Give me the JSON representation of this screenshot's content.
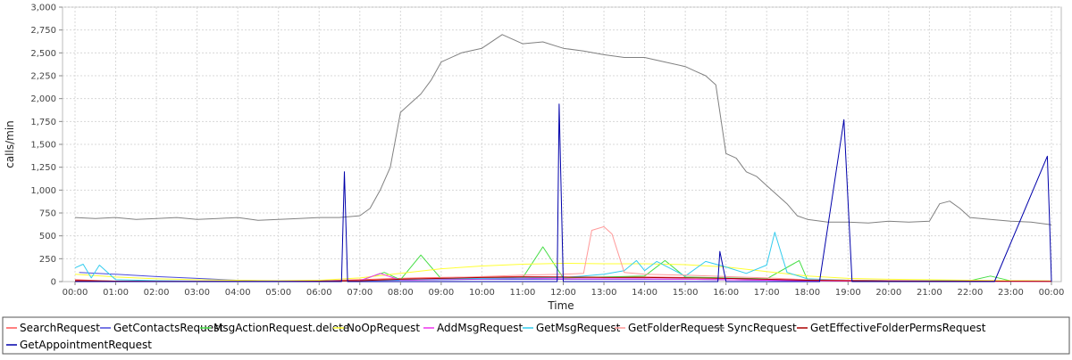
{
  "chart_data": {
    "type": "line",
    "xlabel": "Time",
    "ylabel": "calls/min",
    "ylim": [
      0,
      3000
    ],
    "yticks": [
      0,
      250,
      500,
      750,
      1000,
      1250,
      1500,
      1750,
      2000,
      2250,
      2500,
      2750,
      3000
    ],
    "ytick_labels": [
      "0",
      "250",
      "500",
      "750",
      "1,000",
      "1,250",
      "1,500",
      "1,750",
      "2,000",
      "2,250",
      "2,500",
      "2,750",
      "3,000"
    ],
    "x_range_hours": [
      0,
      24
    ],
    "xtick_labels": [
      "00:00",
      "01:00",
      "02:00",
      "03:00",
      "04:00",
      "05:00",
      "06:00",
      "07:00",
      "08:00",
      "09:00",
      "10:00",
      "11:00",
      "12:00",
      "13:00",
      "14:00",
      "15:00",
      "16:00",
      "17:00",
      "18:00",
      "19:00",
      "20:00",
      "21:00",
      "22:00",
      "23:00",
      "00:00"
    ],
    "grid": true,
    "legend": "bottom",
    "series": [
      {
        "name": "SearchRequest",
        "color": "#ff5555",
        "x": [
          0,
          1,
          2,
          3,
          4,
          5,
          6,
          7,
          8,
          9,
          10,
          11,
          12,
          13,
          14,
          15,
          16,
          17,
          18,
          19,
          20,
          21,
          22,
          23,
          24
        ],
        "values": [
          20,
          5,
          3,
          2,
          2,
          3,
          8,
          20,
          35,
          45,
          50,
          55,
          50,
          50,
          50,
          45,
          35,
          25,
          15,
          10,
          8,
          6,
          5,
          4,
          3
        ]
      },
      {
        "name": "GetContactsRequest",
        "color": "#4b4bdc",
        "x": [
          0.1,
          1,
          2,
          3,
          4,
          5,
          6,
          7,
          8,
          9,
          10,
          11,
          12,
          13,
          14,
          15,
          16,
          17,
          18,
          19,
          20,
          21,
          22,
          23,
          24
        ],
        "values": [
          100,
          80,
          55,
          35,
          15,
          5,
          5,
          10,
          15,
          20,
          25,
          25,
          25,
          25,
          25,
          25,
          20,
          15,
          10,
          5,
          5,
          5,
          5,
          5,
          5
        ]
      },
      {
        "name": "MsgActionRequest.delete",
        "color": "#44dd44",
        "x": [
          0,
          1,
          2,
          3,
          4,
          5,
          6,
          7,
          7.6,
          8,
          8.5,
          9,
          10,
          11,
          11.5,
          12,
          13,
          14,
          14.5,
          15,
          16,
          17,
          17.8,
          18,
          19,
          20,
          21,
          22,
          22.5,
          23,
          24
        ],
        "values": [
          10,
          5,
          3,
          2,
          2,
          3,
          5,
          10,
          100,
          20,
          290,
          30,
          35,
          40,
          380,
          40,
          50,
          60,
          230,
          50,
          40,
          30,
          230,
          20,
          15,
          10,
          10,
          10,
          60,
          8,
          5
        ]
      },
      {
        "name": "NoOpRequest",
        "color": "#ffff33",
        "x": [
          0,
          1,
          2,
          3,
          4,
          5,
          6,
          7,
          8,
          9,
          10,
          11,
          12,
          13,
          14,
          15,
          16,
          17,
          18,
          19,
          20,
          21,
          22,
          23,
          24
        ],
        "values": [
          80,
          50,
          30,
          20,
          15,
          10,
          15,
          40,
          90,
          140,
          170,
          190,
          200,
          195,
          195,
          185,
          160,
          110,
          60,
          35,
          25,
          20,
          15,
          10,
          8
        ]
      },
      {
        "name": "AddMsgRequest",
        "color": "#ee33ee",
        "x": [
          0,
          1,
          2,
          3,
          4,
          5,
          6,
          7,
          7.5,
          8,
          9,
          10,
          11,
          12,
          13,
          14,
          15,
          16,
          17,
          18,
          19,
          20,
          21,
          22,
          23,
          24
        ],
        "values": [
          5,
          3,
          2,
          2,
          2,
          2,
          5,
          10,
          90,
          15,
          25,
          30,
          35,
          30,
          30,
          30,
          25,
          20,
          15,
          10,
          5,
          5,
          5,
          5,
          3,
          3
        ]
      },
      {
        "name": "GetMsgRequest",
        "color": "#33ccee",
        "x": [
          0,
          0.2,
          0.4,
          0.6,
          1,
          2,
          3,
          4,
          5,
          6,
          7,
          8,
          9,
          10,
          11,
          12,
          12.5,
          13,
          13.5,
          13.8,
          14,
          14.3,
          15,
          15.5,
          16,
          16.5,
          17,
          17.2,
          17.5,
          18,
          19,
          20,
          21,
          22,
          23,
          24
        ],
        "values": [
          150,
          190,
          40,
          180,
          20,
          10,
          5,
          5,
          5,
          5,
          10,
          20,
          30,
          35,
          40,
          45,
          60,
          80,
          120,
          230,
          120,
          220,
          60,
          220,
          160,
          90,
          180,
          540,
          100,
          30,
          15,
          10,
          8,
          5,
          5,
          5
        ]
      },
      {
        "name": "GetFolderRequest",
        "color": "#ff9999",
        "x": [
          0,
          1,
          2,
          3,
          4,
          5,
          6,
          7,
          8,
          9,
          10,
          11,
          12,
          12.5,
          12.7,
          13,
          13.2,
          13.5,
          14,
          15,
          16,
          17,
          18,
          19,
          20,
          21,
          22,
          23,
          24
        ],
        "values": [
          10,
          5,
          3,
          2,
          2,
          3,
          5,
          10,
          25,
          40,
          55,
          70,
          80,
          90,
          560,
          600,
          520,
          100,
          80,
          70,
          55,
          40,
          20,
          15,
          10,
          8,
          6,
          5,
          5
        ]
      },
      {
        "name": "SyncRequest",
        "color": "#808080",
        "x": [
          0,
          0.5,
          1,
          1.5,
          2,
          2.5,
          3,
          3.5,
          4,
          4.5,
          5,
          5.5,
          6,
          6.5,
          7,
          7.25,
          7.5,
          7.75,
          8,
          8.25,
          8.5,
          8.75,
          9,
          9.5,
          10,
          10.5,
          11,
          11.5,
          12,
          12.5,
          13,
          13.5,
          14,
          14.5,
          15,
          15.25,
          15.5,
          15.75,
          16,
          16.25,
          16.5,
          16.75,
          17,
          17.25,
          17.5,
          17.75,
          18,
          18.5,
          19,
          19.5,
          20,
          20.5,
          21,
          21.25,
          21.5,
          21.75,
          22,
          22.5,
          23,
          23.5,
          24
        ],
        "values": [
          700,
          690,
          700,
          680,
          690,
          700,
          680,
          690,
          700,
          670,
          680,
          690,
          700,
          700,
          720,
          800,
          1000,
          1250,
          1850,
          1950,
          2050,
          2200,
          2400,
          2500,
          2550,
          2700,
          2600,
          2620,
          2550,
          2520,
          2480,
          2450,
          2450,
          2400,
          2350,
          2300,
          2250,
          2150,
          1400,
          1350,
          1200,
          1150,
          1050,
          950,
          850,
          720,
          680,
          650,
          650,
          640,
          660,
          650,
          660,
          850,
          880,
          800,
          700,
          680,
          660,
          650,
          620
        ]
      },
      {
        "name": "GetEffectiveFolderPermsRequest",
        "color": "#aa0000",
        "x": [
          0,
          1,
          2,
          3,
          4,
          5,
          6,
          7,
          8,
          9,
          10,
          11,
          12,
          13,
          14,
          15,
          16,
          17,
          18,
          19,
          20,
          21,
          22,
          23,
          24
        ],
        "values": [
          10,
          5,
          3,
          2,
          2,
          3,
          5,
          10,
          25,
          35,
          45,
          50,
          50,
          45,
          45,
          40,
          35,
          25,
          15,
          10,
          8,
          5,
          5,
          4,
          3
        ]
      },
      {
        "name": "GetAppointmentRequest",
        "color": "#0000aa",
        "x": [
          0,
          3,
          6.3,
          6.55,
          6.62,
          6.7,
          7,
          11.6,
          11.85,
          11.9,
          12,
          15.6,
          15.8,
          15.85,
          16,
          18.3,
          18.9,
          19.1,
          19.5,
          22.6,
          23.9,
          23.95,
          24
        ],
        "values": [
          0,
          0,
          0,
          0,
          1200,
          0,
          0,
          0,
          0,
          1940,
          0,
          0,
          0,
          330,
          0,
          0,
          1770,
          0,
          0,
          0,
          1370,
          720,
          0
        ]
      }
    ]
  }
}
